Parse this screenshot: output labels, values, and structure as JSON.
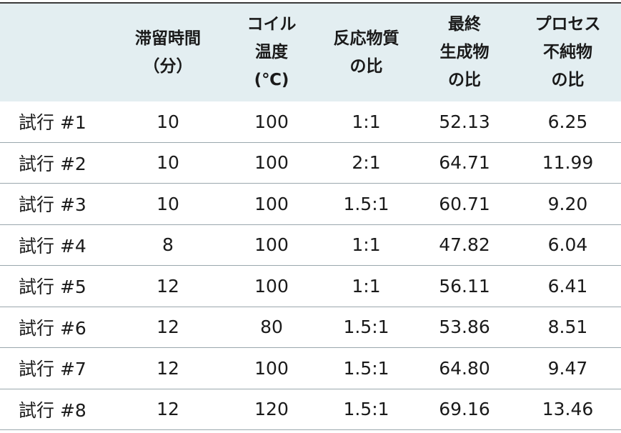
{
  "table": {
    "header": [
      "",
      "滞留時間\n（分）",
      "コイル\n温度\n(℃)",
      "反応物質\nの比",
      "最終\n生成物\nの比",
      "プロセス\n不純物\nの比"
    ],
    "rows": [
      [
        "試行 #1",
        "10",
        "100",
        "1:1",
        "52.13",
        "6.25"
      ],
      [
        "試行 #2",
        "10",
        "100",
        "2:1",
        "64.71",
        "11.99"
      ],
      [
        "試行 #3",
        "10",
        "100",
        "1.5:1",
        "60.71",
        "9.20"
      ],
      [
        "試行 #4",
        "8",
        "100",
        "1:1",
        "47.82",
        "6.04"
      ],
      [
        "試行 #5",
        "12",
        "100",
        "1:1",
        "56.11",
        "6.41"
      ],
      [
        "試行 #6",
        "12",
        "80",
        "1.5:1",
        "53.86",
        "8.51"
      ],
      [
        "試行 #7",
        "12",
        "100",
        "1.5:1",
        "64.80",
        "9.47"
      ],
      [
        "試行 #8",
        "12",
        "120",
        "1.5:1",
        "69.16",
        "13.46"
      ]
    ]
  }
}
